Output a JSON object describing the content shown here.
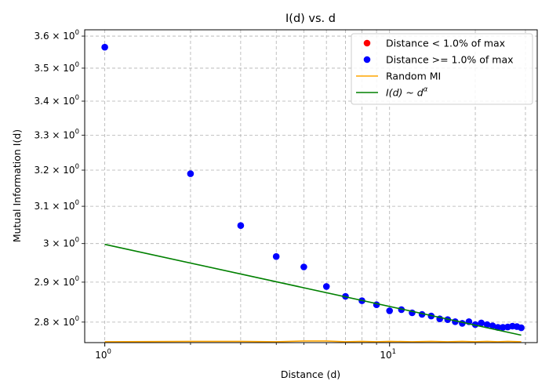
{
  "chart_data": {
    "type": "scatter",
    "title": "I(d) vs. d",
    "xlabel": "Distance (d)",
    "ylabel": "Mutual Information I(d)",
    "xscale": "log",
    "yscale": "log",
    "xlim": [
      0.85,
      33
    ],
    "ylim": [
      2.75,
      3.62
    ],
    "grid": true,
    "legend_position": "top-right",
    "x_ticks": [
      {
        "value": 1,
        "base": "10",
        "exp": "0"
      },
      {
        "value": 10,
        "base": "10",
        "exp": "1"
      }
    ],
    "y_ticks": [
      {
        "value": 2.8,
        "mantissa": "2.8",
        "base": "10",
        "exp": "0"
      },
      {
        "value": 2.9,
        "mantissa": "2.9",
        "base": "10",
        "exp": "0"
      },
      {
        "value": 3.0,
        "mantissa": "3",
        "base": "10",
        "exp": "0"
      },
      {
        "value": 3.1,
        "mantissa": "3.1",
        "base": "10",
        "exp": "0"
      },
      {
        "value": 3.2,
        "mantissa": "3.2",
        "base": "10",
        "exp": "0"
      },
      {
        "value": 3.3,
        "mantissa": "3.3",
        "base": "10",
        "exp": "0"
      },
      {
        "value": 3.4,
        "mantissa": "3.4",
        "base": "10",
        "exp": "0"
      },
      {
        "value": 3.5,
        "mantissa": "3.5",
        "base": "10",
        "exp": "0"
      },
      {
        "value": 3.6,
        "mantissa": "3.6",
        "base": "10",
        "exp": "0"
      }
    ],
    "series": [
      {
        "name": "Distance < 1.0% of max",
        "kind": "scatter",
        "color": "#ff0000",
        "x": [],
        "y": []
      },
      {
        "name": "Distance >= 1.0% of max",
        "kind": "scatter",
        "color": "#0000ff",
        "x": [
          1,
          2,
          3,
          4,
          5,
          6,
          7,
          8,
          9,
          10,
          11,
          12,
          13,
          14,
          15,
          16,
          17,
          18,
          19,
          20,
          21,
          22,
          23,
          24,
          25,
          26,
          27,
          28,
          29
        ],
        "y": [
          3.565,
          3.19,
          3.048,
          2.966,
          2.939,
          2.889,
          2.864,
          2.853,
          2.843,
          2.828,
          2.831,
          2.823,
          2.819,
          2.815,
          2.808,
          2.806,
          2.801,
          2.797,
          2.801,
          2.794,
          2.798,
          2.794,
          2.791,
          2.787,
          2.787,
          2.788,
          2.79,
          2.789,
          2.786
        ]
      },
      {
        "name": "Random MI",
        "kind": "line",
        "color": "#ffa500",
        "x": [
          1,
          2,
          3,
          4,
          5,
          6,
          7,
          8,
          9,
          10,
          12,
          14,
          16,
          18,
          20,
          22,
          24,
          26,
          29
        ],
        "y": [
          2.752,
          2.753,
          2.753,
          2.752,
          2.754,
          2.754,
          2.752,
          2.753,
          2.752,
          2.753,
          2.752,
          2.753,
          2.752,
          2.753,
          2.752,
          2.753,
          2.752,
          2.753,
          2.752
        ]
      },
      {
        "name": "I(d) ~ d^α",
        "kind": "line",
        "color": "#008000",
        "x": [
          1,
          29
        ],
        "y": [
          2.998,
          2.768
        ]
      }
    ],
    "legend": {
      "entries": [
        {
          "label": "Distance < 1.0% of max",
          "marker": "dot",
          "color": "#ff0000"
        },
        {
          "label": "Distance >= 1.0% of max",
          "marker": "dot",
          "color": "#0000ff"
        },
        {
          "label": "Random MI",
          "marker": "line",
          "color": "#ffa500"
        },
        {
          "label_prefix": "I(d) ~ d",
          "label_sup": "α",
          "marker": "line",
          "color": "#008000"
        }
      ]
    }
  }
}
